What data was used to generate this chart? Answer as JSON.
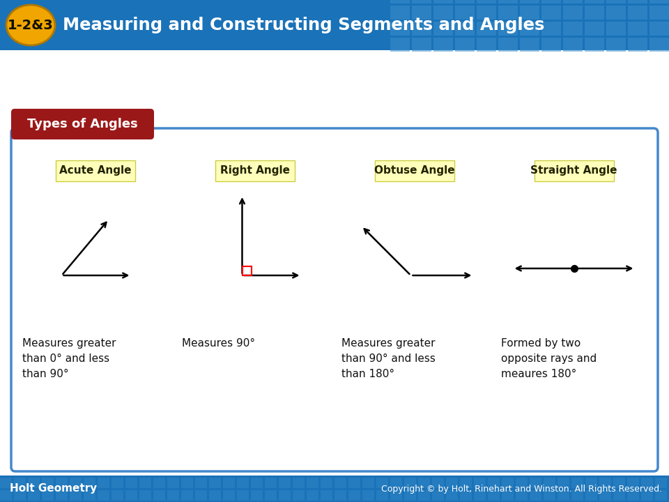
{
  "title_badge": "1-2&3",
  "title_text": "Measuring and Constructing Segments and Angles",
  "header_bg_color": "#1a72b8",
  "header_text_color": "#ffffff",
  "badge_bg_color": "#f0a500",
  "badge_text_color": "#111100",
  "footer_bg_color": "#1a72b8",
  "footer_left": "Holt Geometry",
  "footer_right": "Copyright © by Holt, Rinehart and Winston. All Rights Reserved.",
  "footer_text_color": "#ffffff",
  "main_bg": "#ffffff",
  "section_title": "Types of Angles",
  "section_title_bg": "#9b1818",
  "section_title_color": "#ffffff",
  "card_border_color": "#4488cc",
  "card_bg": "#ffffff",
  "label_bg": "#ffffbb",
  "angle_types": [
    "Acute Angle",
    "Right Angle",
    "Obtuse Angle",
    "Straight Angle"
  ],
  "descriptions": [
    "Measures greater\nthan 0° and less\nthan 90°",
    "Measures 90°",
    "Measures greater\nthan 90° and less\nthan 180°",
    "Formed by two\nopposite rays and\nmeaures 180°"
  ]
}
